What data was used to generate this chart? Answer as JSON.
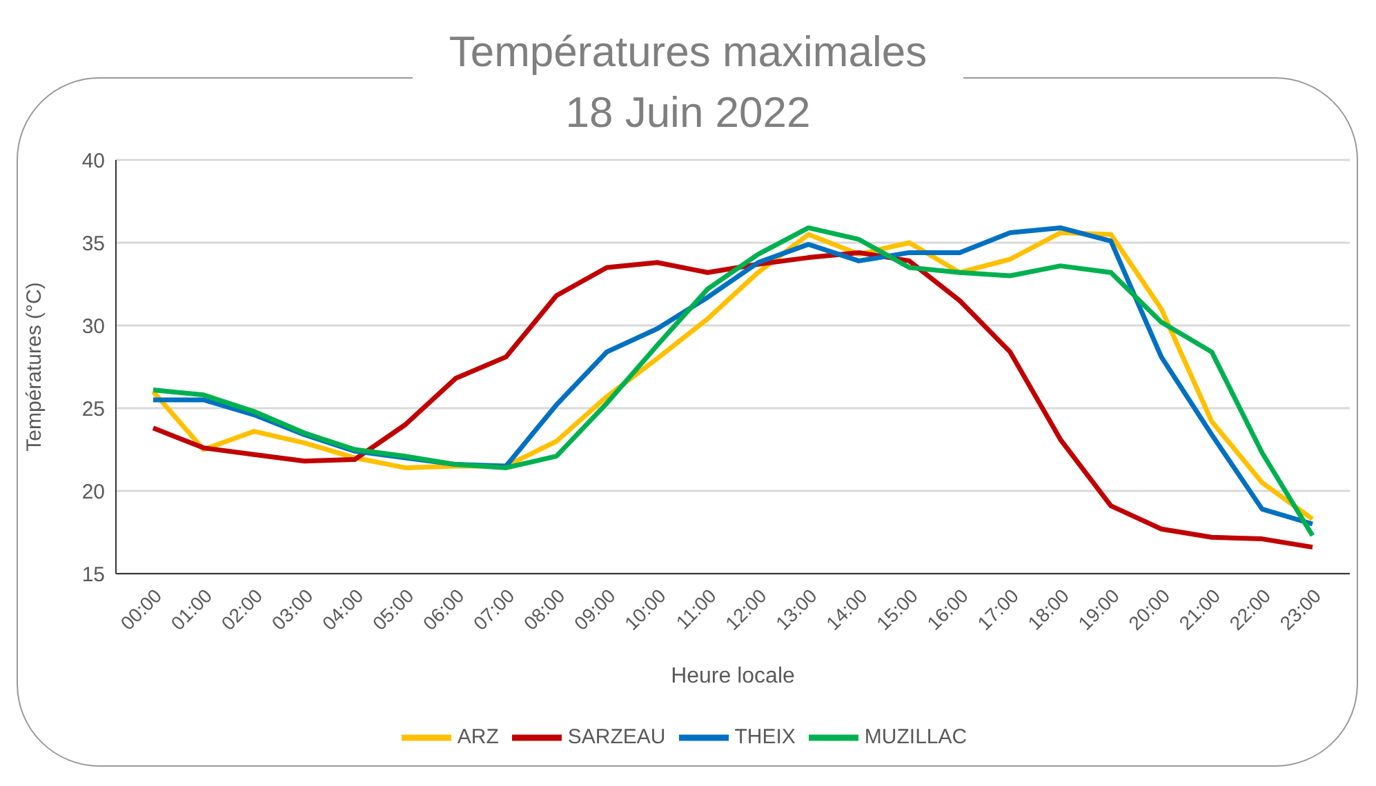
{
  "chart_data": {
    "type": "line",
    "title": "Températures maximales\n18 Juin 2022",
    "xlabel": "Heure locale",
    "ylabel": "Températures (°C)",
    "categories": [
      "00:00",
      "01:00",
      "02:00",
      "03:00",
      "04:00",
      "05:00",
      "06:00",
      "07:00",
      "08:00",
      "09:00",
      "10:00",
      "11:00",
      "12:00",
      "13:00",
      "14:00",
      "15:00",
      "16:00",
      "17:00",
      "18:00",
      "19:00",
      "20:00",
      "21:00",
      "22:00",
      "23:00"
    ],
    "series": [
      {
        "name": "ARZ",
        "color": "#ffc000",
        "values": [
          26.0,
          22.5,
          23.6,
          22.9,
          22.0,
          21.4,
          21.5,
          21.5,
          23.0,
          25.7,
          28.0,
          30.4,
          33.2,
          35.5,
          34.3,
          35.0,
          33.2,
          34.0,
          35.6,
          35.5,
          31.0,
          24.2,
          20.5,
          18.3
        ]
      },
      {
        "name": "SARZEAU",
        "color": "#c00000",
        "values": [
          23.8,
          22.6,
          22.2,
          21.8,
          21.9,
          24.0,
          26.8,
          28.1,
          31.8,
          33.5,
          33.8,
          33.2,
          33.7,
          34.1,
          34.4,
          33.9,
          31.5,
          28.4,
          23.1,
          19.1,
          17.7,
          17.2,
          17.1,
          16.6
        ]
      },
      {
        "name": "THEIX",
        "color": "#0070c0",
        "values": [
          25.5,
          25.5,
          24.6,
          23.4,
          22.4,
          22.0,
          21.6,
          21.5,
          25.2,
          28.4,
          29.8,
          31.7,
          33.8,
          34.9,
          33.9,
          34.4,
          34.4,
          35.6,
          35.9,
          35.1,
          28.1,
          23.4,
          18.9,
          18.0
        ]
      },
      {
        "name": "MUZILLAC",
        "color": "#00b050",
        "values": [
          26.1,
          25.8,
          24.8,
          23.5,
          22.5,
          22.1,
          21.6,
          21.4,
          22.1,
          25.3,
          28.8,
          32.2,
          34.3,
          35.9,
          35.2,
          33.5,
          33.2,
          33.0,
          33.6,
          33.2,
          30.2,
          28.4,
          22.3,
          17.3
        ]
      }
    ],
    "ylim": [
      15,
      40
    ],
    "yticks": [
      15,
      20,
      25,
      30,
      35,
      40
    ],
    "grid": "y",
    "legend": "bottom",
    "marker": "none",
    "line_style": "solid"
  }
}
